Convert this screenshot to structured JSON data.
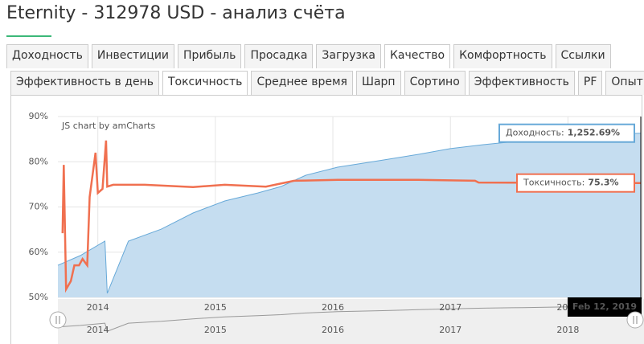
{
  "header": {
    "title": "Eternity - 312978 USD - анализ счёта"
  },
  "tabs": [
    "Доходность",
    "Инвестиции",
    "Прибыль",
    "Просадка",
    "Загрузка",
    "Качество",
    "Комфортность",
    "Ссылки"
  ],
  "active_tab": 5,
  "subtabs": [
    "Эффективность в день",
    "Токсичность",
    "Среднее время",
    "Шарп",
    "Сортино",
    "Эффективность",
    "PF",
    "Опыт"
  ],
  "active_subtab": 1,
  "chart_data": {
    "type": "line",
    "credit": "JS chart by amCharts",
    "cursor_label": "Feb 12, 2019",
    "xlim": [
      2014.16,
      2019.12
    ],
    "xticks": [
      {
        "value": 2014.5,
        "label": "2014"
      },
      {
        "value": 2015.5,
        "label": "2015"
      },
      {
        "value": 2016.5,
        "label": "2016"
      },
      {
        "value": 2017.5,
        "label": "2017"
      },
      {
        "value": 2018.5,
        "label": "2018"
      }
    ],
    "ylim": [
      50,
      90
    ],
    "yticks": [
      {
        "value": 50,
        "label": "50%"
      },
      {
        "value": 60,
        "label": "60%"
      },
      {
        "value": 70,
        "label": "70%"
      },
      {
        "value": 80,
        "label": "80%"
      },
      {
        "value": 90,
        "label": "90%"
      }
    ],
    "y2lim": [
      -200,
      1400
    ],
    "grid": true,
    "series": [
      {
        "name": "Доходность",
        "color": "#67a9d8",
        "fill": "#c5ddf0",
        "axis": "y2",
        "balloon": {
          "text": "Доходность:",
          "value_label": "1,252.69%"
        },
        "x": [
          2014.16,
          2014.35,
          2014.56,
          2014.58,
          2014.76,
          2015.04,
          2015.31,
          2015.58,
          2015.86,
          2016.06,
          2016.27,
          2016.54,
          2016.89,
          2017.23,
          2017.5,
          2017.78,
          2018.12,
          2018.46,
          2018.74,
          2019.12
        ],
        "values": [
          84,
          170,
          298,
          -164,
          298,
          404,
          547,
          653,
          724,
          781,
          881,
          952,
          1009,
          1066,
          1116,
          1151,
          1187,
          1222,
          1236,
          1252.69
        ]
      },
      {
        "name": "Токсичность",
        "color": "#f07050",
        "balloon": {
          "text": "Токсичность:",
          "value_label": "75.3%"
        },
        "x": [
          2014.2,
          2014.21,
          2014.23,
          2014.27,
          2014.3,
          2014.34,
          2014.37,
          2014.41,
          2014.43,
          2014.48,
          2014.5,
          2014.54,
          2014.57,
          2014.58,
          2014.63,
          2014.9,
          2015.31,
          2015.58,
          2015.93,
          2016.17,
          2016.54,
          2017.23,
          2017.71,
          2017.74,
          2019.12
        ],
        "values": [
          64.2,
          79.3,
          51.8,
          53.6,
          57.1,
          57.1,
          58.5,
          57.1,
          72.2,
          82.0,
          73.1,
          74.0,
          84.7,
          74.5,
          74.9,
          74.9,
          74.4,
          74.9,
          74.5,
          75.8,
          76.0,
          76.0,
          75.8,
          75.4,
          75.3
        ]
      }
    ]
  }
}
